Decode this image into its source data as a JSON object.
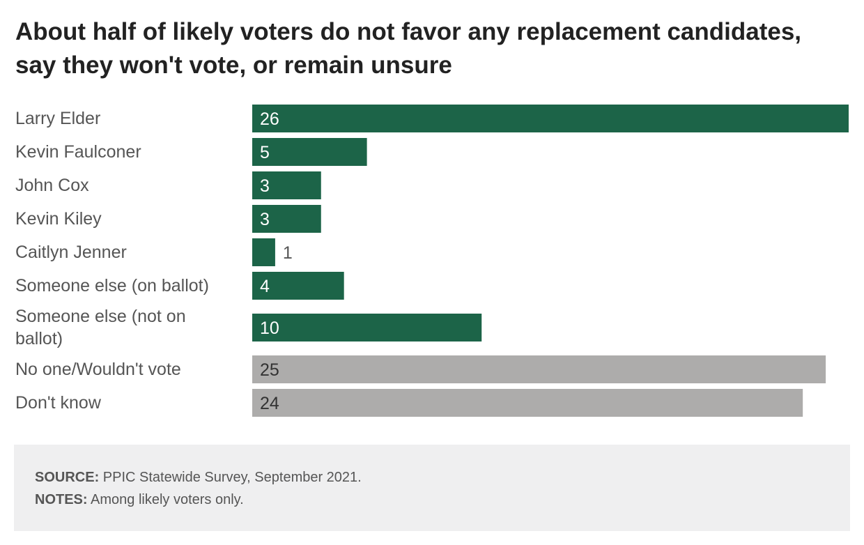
{
  "title": "About half of likely voters do not favor any replacement candidates, say they won't vote, or remain unsure",
  "colors": {
    "candidate": "#1c6448",
    "other": "#adacab",
    "label_inside": "#ffffff",
    "label_inside_gray": "#333333",
    "label_outside": "#555555",
    "category_text": "#555555",
    "footer_bg": "#efeff0"
  },
  "chart_data": {
    "type": "bar",
    "orientation": "horizontal",
    "categories": [
      "Larry Elder",
      "Kevin Faulconer",
      "John Cox",
      "Kevin Kiley",
      "Caitlyn Jenner",
      "Someone else (on ballot)",
      "Someone else (not on ballot)",
      "No one/Wouldn't vote",
      "Don't know"
    ],
    "values": [
      26,
      5,
      3,
      3,
      1,
      4,
      10,
      25,
      24
    ],
    "groups": [
      "candidate",
      "candidate",
      "candidate",
      "candidate",
      "candidate",
      "candidate",
      "candidate",
      "other",
      "other"
    ],
    "xlim": [
      0,
      26
    ],
    "grid": false,
    "legend": "none"
  },
  "footer": {
    "source_label": "SOURCE:",
    "source_text": "PPIC Statewide Survey, September 2021.",
    "notes_label": "NOTES:",
    "notes_text": "Among likely voters only."
  }
}
